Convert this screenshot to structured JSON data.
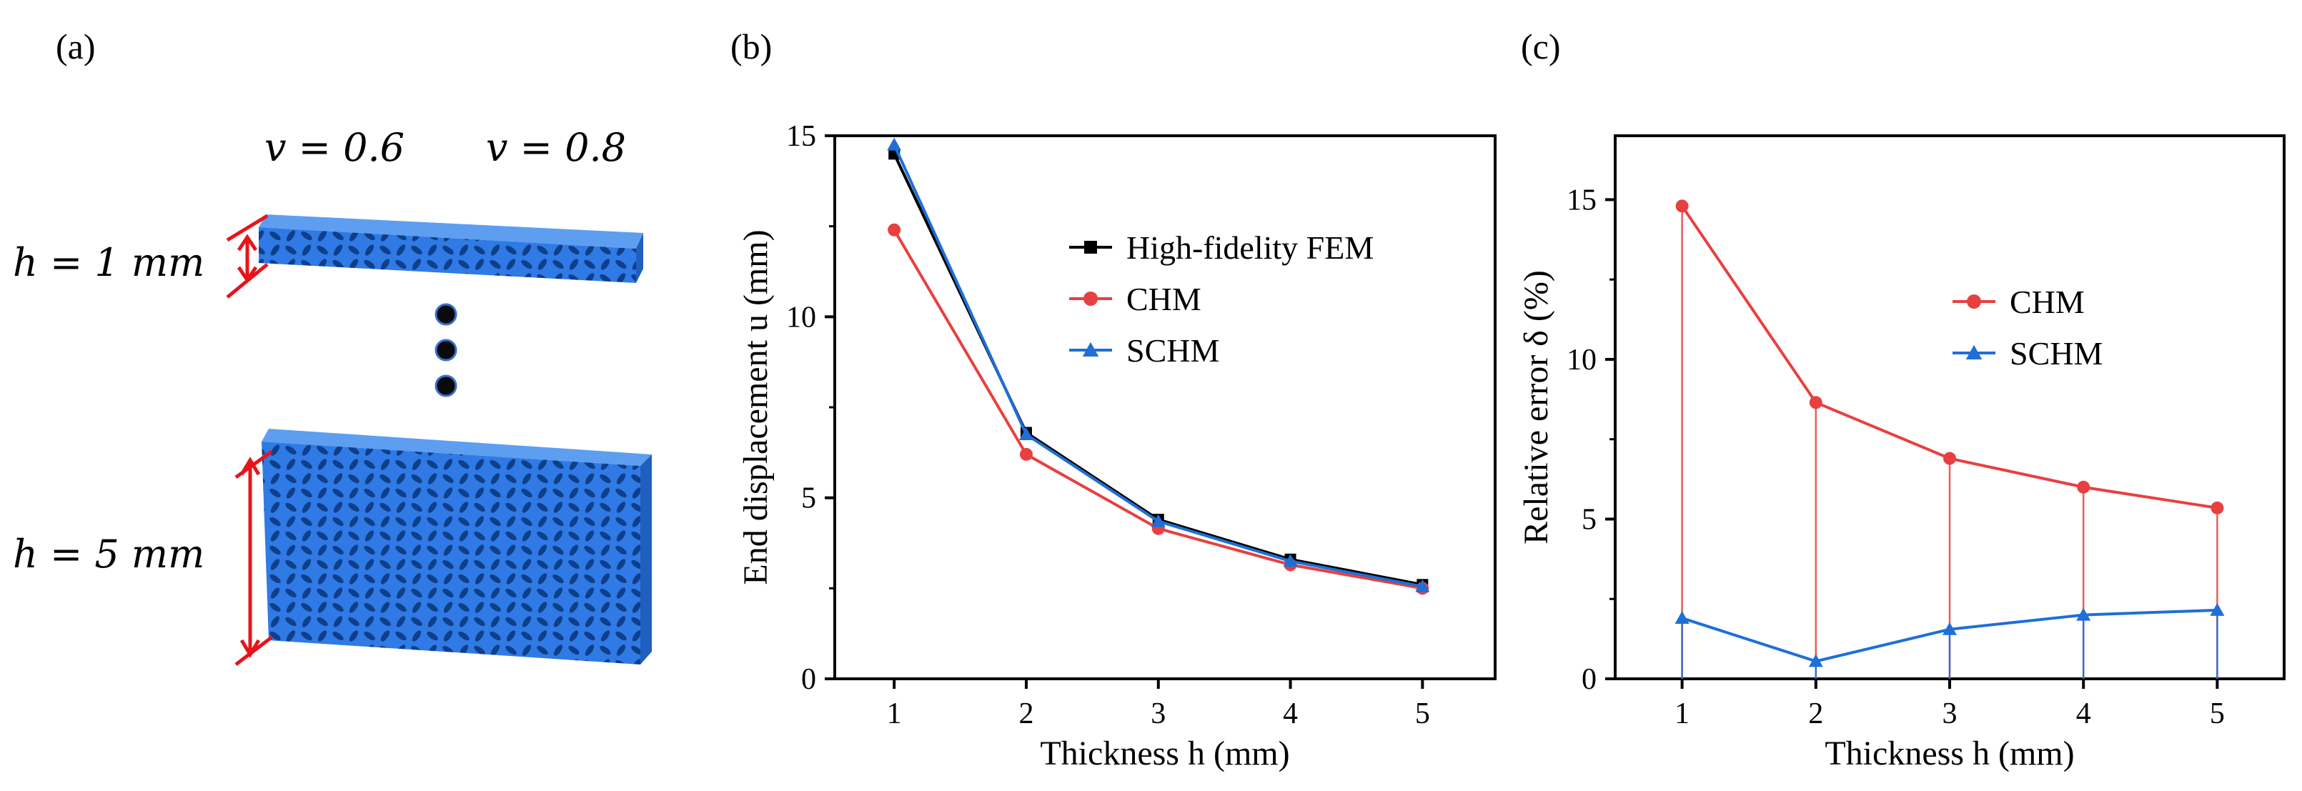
{
  "panels": {
    "a": {
      "label": "(a)",
      "v_labels": [
        "v = 0.6",
        "v = 0.8"
      ],
      "h_labels": [
        "h = 1  mm",
        "h = 5  mm"
      ],
      "colors": {
        "solid": "#2f7ae5",
        "solid_dark": "#1f5fc0",
        "arrow": "#e8141b",
        "dots": "#0a0a0a"
      }
    },
    "b": {
      "label": "(b)"
    },
    "c": {
      "label": "(c)"
    }
  },
  "chart_data": [
    {
      "panel": "b",
      "type": "line",
      "x": [
        1,
        2,
        3,
        4,
        5
      ],
      "xlabel": "Thickness h (mm)",
      "ylabel": "End displacement u (mm)",
      "xlim": [
        0.55,
        5.55
      ],
      "ylim": [
        0,
        15
      ],
      "xticks": [
        1,
        2,
        3,
        4,
        5
      ],
      "yticks": [
        0,
        5,
        10,
        15
      ],
      "legend_position": "upper-right",
      "grid": false,
      "series": [
        {
          "name": "High-fidelity FEM",
          "marker": "square",
          "color": "#000000",
          "values": [
            14.5,
            6.8,
            4.4,
            3.3,
            2.6
          ]
        },
        {
          "name": "CHM",
          "marker": "circle",
          "color": "#e84040",
          "values": [
            12.4,
            6.2,
            4.15,
            3.15,
            2.5
          ]
        },
        {
          "name": "SCHM",
          "marker": "triangle",
          "color": "#1f6fd6",
          "values": [
            14.75,
            6.75,
            4.35,
            3.25,
            2.55
          ]
        }
      ]
    },
    {
      "panel": "c",
      "type": "line",
      "x": [
        1,
        2,
        3,
        4,
        5
      ],
      "xlabel": "Thickness h (mm)",
      "ylabel": "Relative error δ (%)",
      "xlim": [
        0.5,
        5.5
      ],
      "ylim": [
        0,
        17
      ],
      "xticks": [
        1,
        2,
        3,
        4,
        5
      ],
      "yticks": [
        0,
        5,
        10,
        15
      ],
      "legend_position": "upper-right",
      "grid": false,
      "drop_lines": true,
      "series": [
        {
          "name": "CHM",
          "marker": "circle",
          "color": "#e84040",
          "values": [
            14.8,
            8.65,
            6.9,
            6.0,
            5.35
          ]
        },
        {
          "name": "SCHM",
          "marker": "triangle",
          "color": "#1f6fd6",
          "values": [
            1.9,
            0.55,
            1.55,
            2.0,
            2.15
          ]
        }
      ]
    }
  ]
}
